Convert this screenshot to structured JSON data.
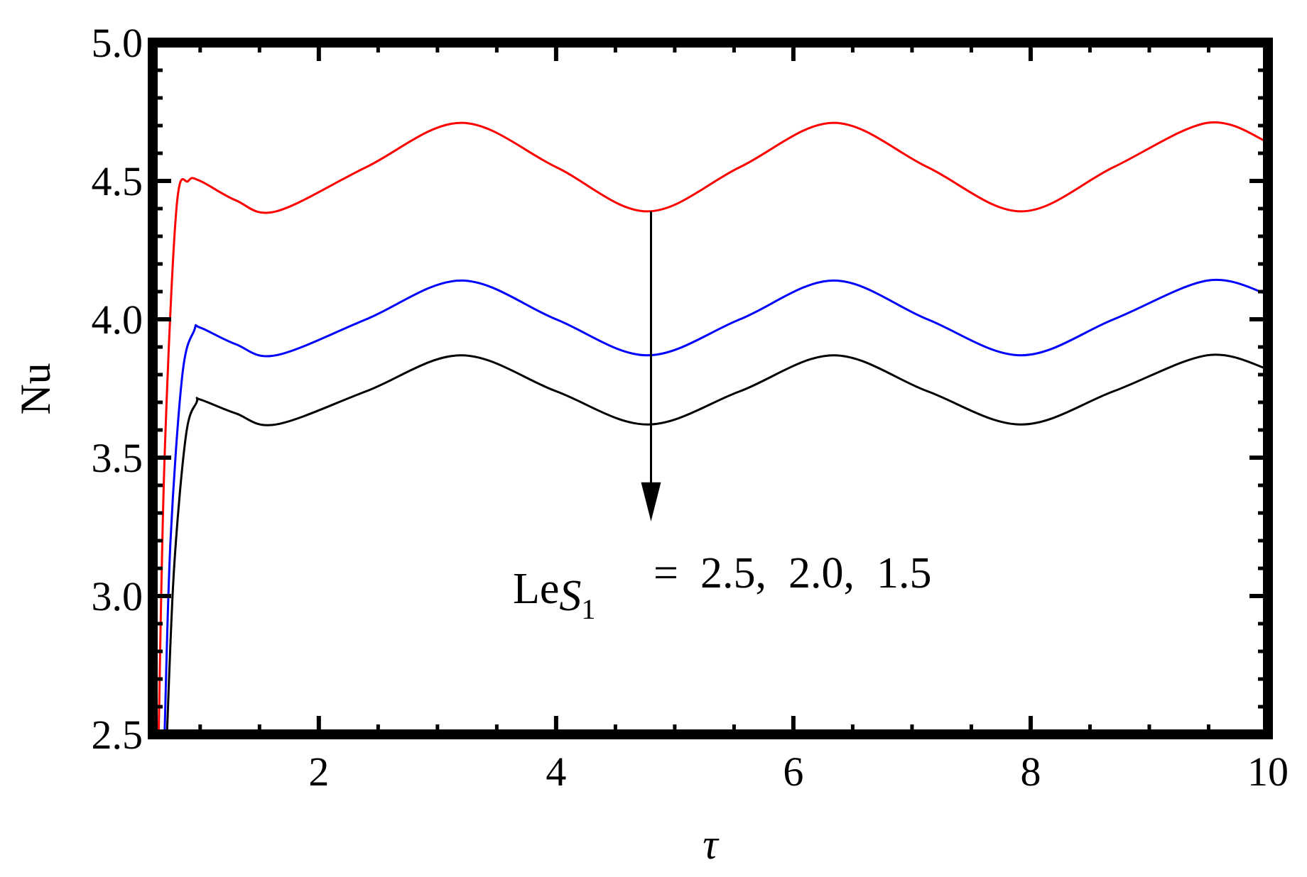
{
  "chart_data": {
    "type": "line",
    "xlabel": "τ",
    "ylabel": "Nu",
    "xlim": [
      0.6,
      10
    ],
    "ylim": [
      2.5,
      5.0
    ],
    "xticks": [
      2,
      4,
      6,
      8,
      10
    ],
    "yticks": [
      2.5,
      3.0,
      3.5,
      4.0,
      4.5,
      5.0
    ],
    "x_tick_labels": [
      "2",
      "4",
      "6",
      "8",
      "10"
    ],
    "y_tick_labels": [
      "2.5",
      "3.0",
      "3.5",
      "4.0",
      "4.5",
      "5.0"
    ],
    "grid": false,
    "legend": "none",
    "annotation": {
      "prefix": "Le",
      "subscript": "S",
      "subsub": "1",
      "values_text": "=  2.5,  2.0,  1.5",
      "arrow": {
        "x": 4.8,
        "y_from": 4.39,
        "y_to": 3.27
      }
    },
    "series": [
      {
        "color": "#ff0000",
        "x": [
          0.65,
          0.7,
          0.8,
          0.9,
          1.0,
          1.3,
          1.64,
          2.4,
          3.2,
          4.0,
          4.77,
          5.55,
          6.34,
          7.13,
          7.92,
          8.7,
          9.49,
          10.0
        ],
        "y": [
          2.5,
          3.5,
          4.4,
          4.5,
          4.5,
          4.43,
          4.39,
          4.55,
          4.71,
          4.55,
          4.39,
          4.55,
          4.71,
          4.55,
          4.39,
          4.55,
          4.71,
          4.64
        ]
      },
      {
        "color": "#0000ff",
        "x": [
          0.7,
          0.75,
          0.85,
          0.95,
          1.0,
          1.3,
          1.64,
          2.4,
          3.2,
          4.0,
          4.77,
          5.55,
          6.34,
          7.13,
          7.92,
          8.7,
          9.49,
          10.0
        ],
        "y": [
          2.5,
          3.2,
          3.8,
          3.96,
          3.97,
          3.91,
          3.87,
          4.0,
          4.14,
          4.0,
          3.87,
          4.0,
          4.14,
          4.0,
          3.87,
          4.0,
          4.14,
          4.09
        ]
      },
      {
        "color": "#000000",
        "x": [
          0.72,
          0.78,
          0.88,
          0.97,
          1.0,
          1.3,
          1.64,
          2.4,
          3.2,
          4.0,
          4.77,
          5.55,
          6.34,
          7.13,
          7.92,
          8.7,
          9.49,
          10.0
        ],
        "y": [
          2.5,
          3.1,
          3.58,
          3.7,
          3.71,
          3.66,
          3.62,
          3.74,
          3.87,
          3.74,
          3.62,
          3.74,
          3.87,
          3.74,
          3.62,
          3.74,
          3.87,
          3.82
        ]
      }
    ]
  }
}
